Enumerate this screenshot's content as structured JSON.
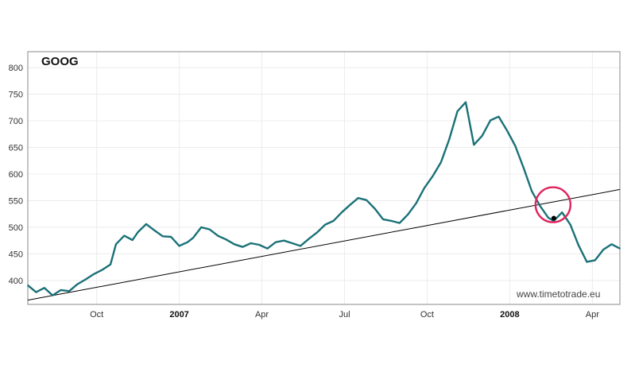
{
  "chart_data": {
    "type": "line",
    "title": "GOOG",
    "watermark": "www.timetotrade.eu",
    "xlabel": "",
    "ylabel": "",
    "ylim": [
      355,
      830
    ],
    "xlim": [
      0,
      21.5
    ],
    "y_ticks": [
      400,
      450,
      500,
      550,
      600,
      650,
      700,
      750,
      800
    ],
    "x_ticks": [
      {
        "label": "Oct",
        "pos": 2.5,
        "bold": false
      },
      {
        "label": "2007",
        "pos": 5.5,
        "bold": true
      },
      {
        "label": "Apr",
        "pos": 8.5,
        "bold": false
      },
      {
        "label": "Jul",
        "pos": 11.5,
        "bold": false
      },
      {
        "label": "Oct",
        "pos": 14.5,
        "bold": false
      },
      {
        "label": "2008",
        "pos": 17.5,
        "bold": true
      },
      {
        "label": "Apr",
        "pos": 20.5,
        "bold": false
      }
    ],
    "grid": true,
    "colors": {
      "series": "#1a7178",
      "trendline": "#000000",
      "circle": "#e0245e",
      "grid": "#ececec",
      "frame": "#888888"
    },
    "series": [
      {
        "name": "GOOG",
        "x": [
          0,
          0.3,
          0.6,
          0.9,
          1.2,
          1.5,
          1.8,
          2.1,
          2.4,
          2.7,
          3.0,
          3.2,
          3.5,
          3.8,
          4.0,
          4.3,
          4.6,
          4.9,
          5.2,
          5.5,
          5.8,
          6.0,
          6.3,
          6.6,
          6.9,
          7.2,
          7.5,
          7.8,
          8.1,
          8.4,
          8.7,
          9.0,
          9.3,
          9.6,
          9.9,
          10.2,
          10.5,
          10.8,
          11.1,
          11.4,
          11.7,
          12.0,
          12.3,
          12.6,
          12.9,
          13.2,
          13.5,
          13.8,
          14.1,
          14.4,
          14.7,
          15.0,
          15.3,
          15.6,
          15.9,
          16.2,
          16.5,
          16.8,
          17.1,
          17.4,
          17.7,
          18.0,
          18.3,
          18.6,
          18.9,
          19.1,
          19.4,
          19.7,
          20.0,
          20.3,
          20.6,
          20.9,
          21.2,
          21.5
        ],
        "values": [
          391,
          378,
          386,
          372,
          382,
          380,
          393,
          402,
          412,
          420,
          430,
          468,
          484,
          476,
          491,
          506,
          494,
          483,
          482,
          465,
          472,
          480,
          500,
          496,
          484,
          477,
          468,
          463,
          470,
          467,
          460,
          472,
          475,
          470,
          465,
          478,
          490,
          505,
          512,
          528,
          542,
          555,
          551,
          535,
          515,
          512,
          508,
          524,
          545,
          574,
          596,
          622,
          665,
          718,
          735,
          655,
          672,
          701,
          708,
          682,
          653,
          612,
          568,
          540,
          518,
          512,
          528,
          505,
          466,
          435,
          438,
          458,
          468,
          460
        ]
      }
    ],
    "trendline": {
      "x": [
        0,
        21.5
      ],
      "values": [
        363,
        571
      ]
    },
    "highlight": {
      "x": 19.1,
      "value": 517,
      "circle_label": ""
    }
  }
}
